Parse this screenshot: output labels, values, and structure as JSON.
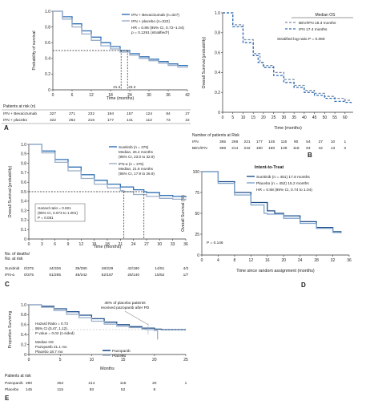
{
  "chart_data": [
    {
      "panel": "A",
      "type": "line",
      "ylabel": "Probability of survival",
      "xlabel": "Time (months)",
      "xlim": [
        0,
        42
      ],
      "ylim": [
        0,
        1.0
      ],
      "xticks": [
        0,
        6,
        12,
        18,
        24,
        30,
        36,
        42
      ],
      "yticks": [
        0,
        0.2,
        0.4,
        0.6,
        0.8,
        1.0
      ],
      "series": [
        {
          "name": "IFN + Bevacizumab (n=327)",
          "color": "#2e6fb5",
          "dash": "solid",
          "x": [
            0,
            3,
            6,
            9,
            12,
            15,
            18,
            21,
            24,
            27,
            30,
            33,
            36,
            39,
            42
          ],
          "y": [
            1.0,
            0.93,
            0.84,
            0.75,
            0.67,
            0.6,
            0.55,
            0.5,
            0.46,
            0.42,
            0.39,
            0.36,
            0.33,
            0.31,
            0.3
          ]
        },
        {
          "name": "IFN + placebo (n=322)",
          "color": "#9aaec8",
          "dash": "solid",
          "x": [
            0,
            3,
            6,
            9,
            12,
            15,
            18,
            21,
            24,
            27,
            30,
            33,
            36,
            39,
            42
          ],
          "y": [
            1.0,
            0.9,
            0.8,
            0.71,
            0.63,
            0.56,
            0.52,
            0.48,
            0.44,
            0.4,
            0.37,
            0.34,
            0.31,
            0.29,
            0.28
          ]
        }
      ],
      "legend": [
        "IFN + Bevacizumab (n=327)",
        "IFN + placebo (n=322)"
      ],
      "annotation": [
        "HR = 0.86 (95% CI, 0.72–1.04)",
        "p = 0.1291 (stratified*)"
      ],
      "medians": [
        "21.3",
        "23.3"
      ],
      "risk_title": "Patients at risk (n)",
      "risk_rows": [
        {
          "label": "IFN + Bevacizumab",
          "values": [
            "327",
            "271",
            "232",
            "194",
            "157",
            "124",
            "84",
            "27"
          ]
        },
        {
          "label": "IFN + placebo",
          "values": [
            "322",
            "262",
            "216",
            "177",
            "141",
            "113",
            "73",
            "22"
          ]
        }
      ]
    },
    {
      "panel": "B",
      "type": "line",
      "ylabel": "Overall Survival (probability)",
      "xlabel": "Time (months)",
      "xlim": [
        0,
        64
      ],
      "ylim": [
        0,
        1.0
      ],
      "xticks": [
        0,
        5,
        10,
        15,
        20,
        25,
        30,
        35,
        40,
        45,
        50,
        55,
        60
      ],
      "yticks": [
        0,
        0.2,
        0.4,
        0.6,
        0.8,
        1.0
      ],
      "series": [
        {
          "name": "BEV/IFN 18.3 months",
          "color": "#7a8aa6",
          "dash": "dashed",
          "x": [
            0,
            5,
            10,
            15,
            18.3,
            20,
            25,
            30,
            35,
            40,
            45,
            50,
            55,
            60,
            63
          ],
          "y": [
            1.0,
            0.88,
            0.73,
            0.59,
            0.5,
            0.47,
            0.4,
            0.33,
            0.27,
            0.22,
            0.19,
            0.16,
            0.14,
            0.12,
            0.12
          ]
        },
        {
          "name": "IFN 17.4 months",
          "color": "#2e6fb5",
          "dash": "dashed",
          "x": [
            0,
            5,
            10,
            15,
            17.4,
            20,
            25,
            30,
            35,
            40,
            45,
            50,
            55,
            60,
            63
          ],
          "y": [
            1.0,
            0.86,
            0.7,
            0.57,
            0.5,
            0.45,
            0.37,
            0.3,
            0.25,
            0.2,
            0.17,
            0.14,
            0.11,
            0.1,
            0.09
          ]
        }
      ],
      "legend_title": "Median OS",
      "legend": [
        "BEV/IFN 18.3 months",
        "IFN 17.4 months"
      ],
      "annotation": [
        "Stratified log-ratio P = 0.069"
      ],
      "risk_title": "Number of patients at Risk",
      "risk_rows": [
        {
          "label": "IFN",
          "values": [
            "365",
            "266",
            "221",
            "177",
            "145",
            "115",
            "90",
            "54",
            "27",
            "10",
            "1"
          ]
        },
        {
          "label": "BEV/IFN",
          "values": [
            "369",
            "214",
            "242",
            "190",
            "180",
            "139",
            "118",
            "84",
            "42",
            "13",
            "2"
          ]
        }
      ]
    },
    {
      "panel": "C",
      "type": "line",
      "ylabel": "Overall Survival (probability)",
      "xlabel": "Time (months)",
      "xlim": [
        0,
        36
      ],
      "ylim": [
        0,
        1.0
      ],
      "xticks": [
        0,
        3,
        6,
        9,
        12,
        15,
        18,
        21,
        24,
        27,
        30,
        33,
        36
      ],
      "yticks": [
        0,
        0.1,
        0.2,
        0.3,
        0.4,
        0.5,
        0.6,
        0.7,
        0.8,
        0.9,
        1.0
      ],
      "series": [
        {
          "name": "Sunitinib (n = 375)",
          "color": "#2e6fb5",
          "dash": "solid",
          "x": [
            0,
            3,
            6,
            9,
            12,
            15,
            18,
            21,
            24,
            26.4,
            27,
            30,
            33,
            36
          ],
          "y": [
            1.0,
            0.93,
            0.84,
            0.76,
            0.68,
            0.62,
            0.58,
            0.55,
            0.52,
            0.5,
            0.49,
            0.46,
            0.45,
            0.44
          ]
        },
        {
          "name": "IFN-α (n = 375)",
          "color": "#9aaec8",
          "dash": "solid",
          "x": [
            0,
            3,
            6,
            9,
            12,
            15,
            18,
            21,
            21.8,
            24,
            27,
            30,
            33,
            36
          ],
          "y": [
            1.0,
            0.91,
            0.81,
            0.72,
            0.64,
            0.58,
            0.54,
            0.51,
            0.5,
            0.47,
            0.45,
            0.43,
            0.42,
            0.41
          ]
        }
      ],
      "legend": [
        [
          "Sunitinib (n = 375)",
          "Median, 26.4 months",
          "(95% CI, 23.0 to 32.9)"
        ],
        [
          "IFN-α (n = 375)",
          "Median, 21.8 months",
          "(95% CI, 17.9 to 26.9)"
        ]
      ],
      "annotation": [
        "Hazard ratio = 0.821",
        "(95% CI, 0.673 to 1.001)",
        "P = 0.051"
      ],
      "risk_title": [
        "No. of deaths/",
        "No. at risk"
      ],
      "risk_rows": [
        {
          "label": "Sunitinib",
          "values": [
            "0/375",
            "44/326",
            "35/280",
            "48/229",
            "42/180",
            "14/51",
            "4/2"
          ]
        },
        {
          "label": "IFN-α",
          "values": [
            "0/375",
            "61/295",
            "45/242",
            "52/187",
            "25/140",
            "15/52",
            "1/7"
          ]
        }
      ]
    },
    {
      "panel": "D",
      "type": "line",
      "title": "Intent-to-Treat",
      "ylabel": "Overall Survival (%)",
      "xlabel": "Time since random assignment (months)",
      "xlim": [
        0,
        36
      ],
      "ylim": [
        0,
        100
      ],
      "xticks": [
        0,
        4,
        8,
        12,
        16,
        20,
        24,
        28,
        32,
        36
      ],
      "yticks": [
        0,
        25,
        50,
        75,
        100
      ],
      "series": [
        {
          "name": "Sunitinib (n = 451) 17.8 months",
          "color": "#1f4e8c",
          "dash": "solid",
          "x": [
            0,
            4,
            8,
            12,
            16,
            17.8,
            20,
            24,
            28,
            32,
            34
          ],
          "y": [
            100,
            88,
            75,
            63,
            53,
            50,
            47,
            40,
            33,
            28,
            27
          ]
        },
        {
          "name": "Placebo (n = 452) 15.2 months",
          "color": "#7fa3cc",
          "dash": "solid",
          "x": [
            0,
            4,
            8,
            12,
            15.2,
            16,
            20,
            24,
            28,
            32,
            34
          ],
          "y": [
            100,
            86,
            72,
            60,
            50,
            49,
            44,
            38,
            32,
            27,
            26
          ]
        }
      ],
      "legend": [
        "Sunitinib (n = 451) 17.8 months",
        "Placebo (n = 452) 15.2 months",
        "HR = 0.88 (95% CI, 0.74 to 1.04)"
      ],
      "annotation": [
        "P = 0.146"
      ]
    },
    {
      "panel": "E",
      "type": "line",
      "ylabel": "Proportion Surviving",
      "xlabel": "Months",
      "xlim": [
        0,
        25
      ],
      "ylim": [
        0,
        1.0
      ],
      "xticks": [
        0,
        5,
        10,
        15,
        20,
        25
      ],
      "yticks": [
        0,
        0.2,
        0.4,
        0.6,
        0.8,
        1.0
      ],
      "series": [
        {
          "name": "Pazopanib",
          "color": "#1f4e8c",
          "dash": "solid",
          "x": [
            0,
            2,
            4,
            6,
            8,
            10,
            12,
            14,
            16,
            18,
            20,
            21.1,
            23,
            25
          ],
          "y": [
            1.0,
            0.97,
            0.92,
            0.86,
            0.79,
            0.72,
            0.65,
            0.6,
            0.56,
            0.53,
            0.51,
            0.5,
            0.5,
            0.5
          ]
        },
        {
          "name": "Placebo",
          "color": "#9aaec8",
          "dash": "solid",
          "x": [
            0,
            2,
            4,
            6,
            8,
            10,
            12,
            14,
            16,
            18,
            18.7,
            20,
            20.5
          ],
          "y": [
            1.0,
            0.95,
            0.88,
            0.81,
            0.74,
            0.67,
            0.61,
            0.57,
            0.54,
            0.51,
            0.5,
            0.48,
            0.3
          ]
        }
      ],
      "legend": [
        "Pazopanib",
        "Placebo"
      ],
      "annotation": [
        "Hazard Ratio = 0.73",
        "95% CI (0.47, 1.12)",
        "P value = 0.02 (1-sided)"
      ],
      "median_text": [
        "Median OS",
        "Pazopanib 21.1 mo",
        "Placebo 18.7 mo"
      ],
      "note": [
        "48% of placebo patients",
        "received pazopanib after PD"
      ],
      "risk_title": "Patients at risk",
      "risk_rows": [
        {
          "label": "Pazopanib",
          "values": [
            "290",
            "254",
            "214",
            "115",
            "20",
            "1"
          ]
        },
        {
          "label": "Placebo",
          "values": [
            "145",
            "115",
            "93",
            "52",
            "8"
          ]
        }
      ]
    }
  ],
  "panel_labels": [
    "A",
    "B",
    "C",
    "D",
    "E"
  ]
}
